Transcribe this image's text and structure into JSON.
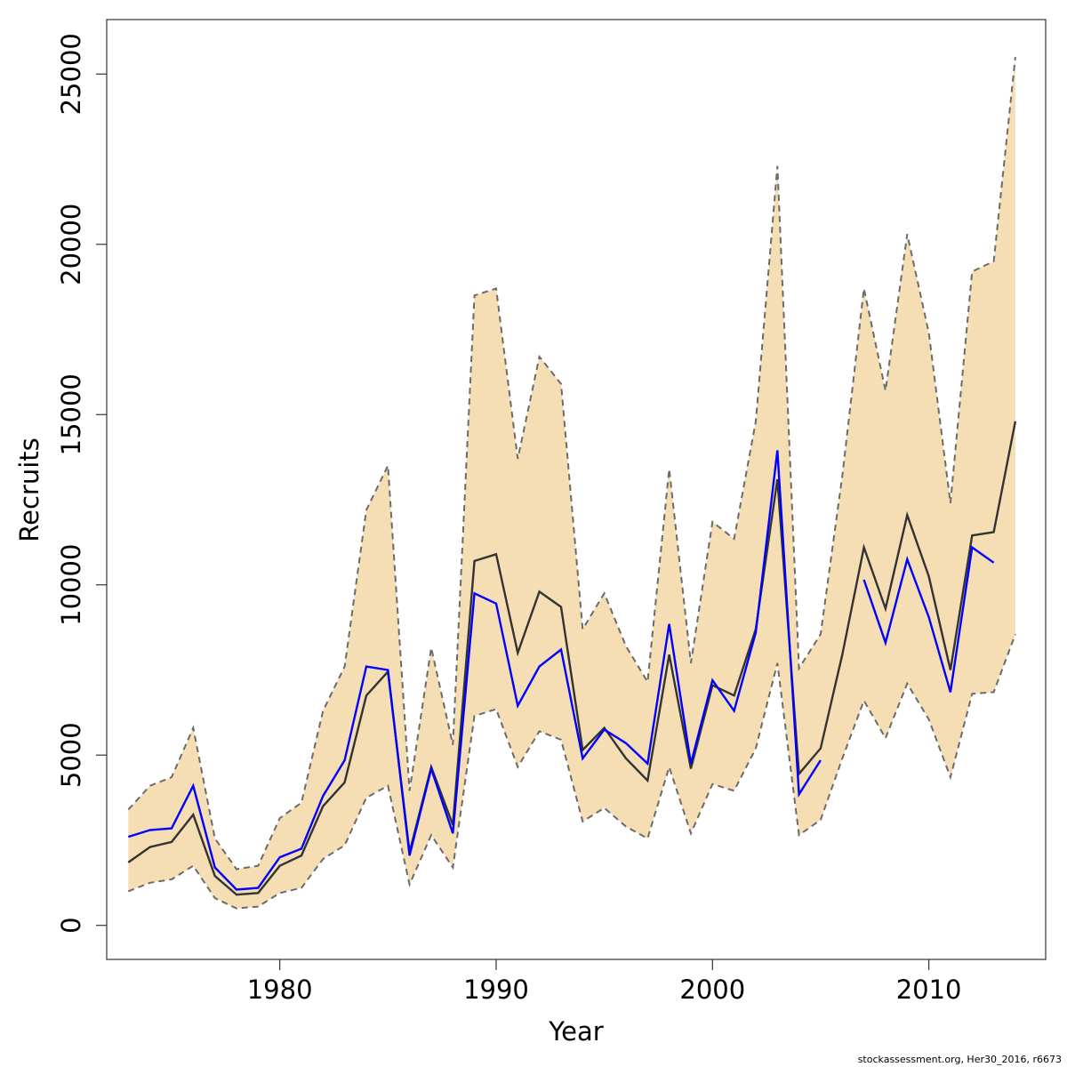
{
  "chart_data": {
    "type": "line",
    "title": "",
    "xlabel": "Year",
    "ylabel": "Recruits",
    "xlim": [
      1972,
      2015.4
    ],
    "ylim": [
      -1000,
      26600
    ],
    "x_ticks": [
      1980,
      1990,
      2000,
      2010
    ],
    "y_ticks": [
      0,
      5000,
      10000,
      15000,
      20000,
      25000
    ],
    "grid": false,
    "legend": "none",
    "colors": {
      "band_fill": "#f5deb3",
      "band_edge": "#6b6b6b",
      "estimate": "#333333",
      "comparison": "#0000ff"
    },
    "x": [
      1973,
      1974,
      1975,
      1976,
      1977,
      1978,
      1979,
      1980,
      1981,
      1982,
      1983,
      1984,
      1985,
      1986,
      1987,
      1988,
      1989,
      1990,
      1991,
      1992,
      1993,
      1994,
      1995,
      1996,
      1997,
      1998,
      1999,
      2000,
      2001,
      2002,
      2003,
      2004,
      2005,
      2006,
      2007,
      2008,
      2009,
      2010,
      2011,
      2012,
      2013,
      2014
    ],
    "series": [
      {
        "role": "upper-bound",
        "values": [
          3400,
          4100,
          4350,
          5800,
          2550,
          1650,
          1750,
          3150,
          3600,
          6300,
          7600,
          12200,
          13500,
          3950,
          8150,
          5300,
          18500,
          18700,
          13700,
          16700,
          15900,
          8700,
          9750,
          8200,
          7150,
          13400,
          7700,
          11850,
          11350,
          14800,
          22300,
          7550,
          8550,
          13200,
          18700,
          15700,
          20300,
          17400,
          12400,
          19200,
          19500,
          25500
        ]
      },
      {
        "role": "lower-bound",
        "values": [
          1000,
          1250,
          1350,
          1750,
          800,
          500,
          550,
          950,
          1100,
          1950,
          2350,
          3750,
          4100,
          1200,
          2650,
          1700,
          6150,
          6350,
          4650,
          5700,
          5450,
          3050,
          3450,
          2900,
          2550,
          4650,
          2700,
          4150,
          3950,
          5200,
          7700,
          2650,
          3100,
          4900,
          6600,
          5500,
          7100,
          6050,
          4350,
          6800,
          6850,
          8550
        ]
      },
      {
        "role": "estimate",
        "values": [
          1850,
          2300,
          2450,
          3250,
          1450,
          900,
          950,
          1750,
          2050,
          3500,
          4200,
          6750,
          7450,
          2150,
          4650,
          2950,
          10700,
          10900,
          8000,
          9800,
          9350,
          5150,
          5800,
          4900,
          4250,
          7950,
          4600,
          7050,
          6750,
          8700,
          13100,
          4450,
          5200,
          7950,
          11100,
          9300,
          12050,
          10250,
          7500,
          11450,
          11550,
          14800
        ]
      },
      {
        "role": "comparison",
        "values": [
          2600,
          2800,
          2850,
          4100,
          1700,
          1050,
          1100,
          2000,
          2250,
          3800,
          4850,
          7600,
          7500,
          2050,
          4600,
          2700,
          9750,
          9450,
          6450,
          7600,
          8100,
          4900,
          5750,
          5350,
          4750,
          8850,
          4750,
          7200,
          6300,
          8600,
          13950,
          3850,
          4850,
          null,
          10150,
          8300,
          10750,
          9050,
          6850,
          11100,
          10650,
          null
        ]
      }
    ],
    "footer": "stockassessment.org, Her30_2016, r6673"
  }
}
